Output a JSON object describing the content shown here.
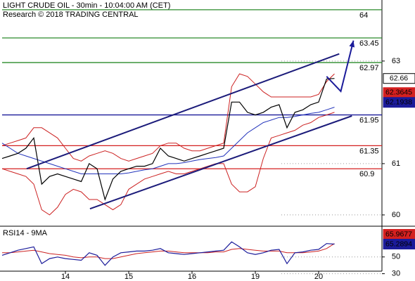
{
  "chart_data": [
    {
      "type": "line",
      "title": "LIGHT CRUDE OIL - 30min - 10:04:00 AM (CET)",
      "subtitle": "Research © 2018 TRADING CENTRAL",
      "ylim": [
        59.78,
        64.19
      ],
      "yticks": [
        60,
        61,
        63
      ],
      "series": [
        {
          "color": "#cc2222",
          "values": [
            61.35,
            61.4,
            61.45,
            61.5,
            61.7,
            61.7,
            61.6,
            61.5,
            61.3,
            61.1,
            61.05,
            61.15,
            61.2,
            61.25,
            61.2,
            61.1,
            61.05,
            61.1,
            61.15,
            61.2,
            61.35,
            61.4,
            61.4,
            61.3,
            61.25,
            61.25,
            61.3,
            61.35,
            61.4,
            62.5,
            62.75,
            62.7,
            62.55,
            62.4,
            62.3,
            62.3,
            62.3,
            62.3,
            62.3,
            62.3,
            62.35,
            62.6,
            62.75
          ]
        },
        {
          "color": "#cc2222",
          "values": [
            60.9,
            60.85,
            60.8,
            60.75,
            60.6,
            60.1,
            60.0,
            60.15,
            60.4,
            60.5,
            60.45,
            60.3,
            60.3,
            60.2,
            60.1,
            60.2,
            60.5,
            60.6,
            60.7,
            60.75,
            60.8,
            60.85,
            60.8,
            60.8,
            60.85,
            60.9,
            60.95,
            61.0,
            61.0,
            60.6,
            60.45,
            60.45,
            60.55,
            61.1,
            61.5,
            61.55,
            61.6,
            61.65,
            61.75,
            61.8,
            61.9,
            61.95,
            62.0
          ]
        },
        {
          "color": "#2233bb",
          "values": [
            61.4,
            61.3,
            61.2,
            61.15,
            61.1,
            61.05,
            61.0,
            60.95,
            60.9,
            60.85,
            60.8,
            60.8,
            60.8,
            60.8,
            60.8,
            60.8,
            60.82,
            60.85,
            60.88,
            60.9,
            60.95,
            61.0,
            61.0,
            61.02,
            61.05,
            61.08,
            61.1,
            61.12,
            61.15,
            61.3,
            61.45,
            61.6,
            61.7,
            61.8,
            61.85,
            61.9,
            61.9,
            61.92,
            61.95,
            61.98,
            62.0,
            62.05,
            62.1
          ]
        },
        {
          "color": "#000000",
          "values": [
            61.1,
            61.15,
            61.2,
            61.3,
            61.5,
            60.6,
            60.75,
            60.8,
            60.75,
            60.7,
            60.65,
            61.0,
            60.9,
            60.3,
            60.7,
            60.85,
            60.9,
            60.95,
            60.95,
            61.0,
            61.3,
            61.15,
            61.1,
            61.05,
            61.1,
            61.15,
            61.2,
            61.25,
            61.3,
            62.2,
            62.2,
            62.0,
            61.95,
            62.0,
            62.1,
            62.15,
            61.7,
            62.0,
            62.05,
            62.15,
            62.2,
            62.65,
            62.66
          ]
        }
      ],
      "levels": [
        {
          "value": 64,
          "color": "#2a8a2a"
        },
        {
          "value": 63.45,
          "color": "#2a8a2a"
        },
        {
          "value": 62.97,
          "color": "#2a8a2a"
        },
        {
          "value": 61.95,
          "color": "#1b1b9a"
        },
        {
          "value": 61.35,
          "color": "#d42020"
        },
        {
          "value": 60.9,
          "color": "#d42020"
        }
      ],
      "channel": [
        {
          "x": [
            3.1,
            42.6
          ],
          "y": [
            60.9,
            63.14
          ]
        },
        {
          "x": [
            11.1,
            44.2
          ],
          "y": [
            60.12,
            61.93
          ]
        }
      ],
      "arrow": {
        "x": [
          41,
          42.8,
          44.4
        ],
        "y": [
          62.7,
          62.41,
          63.4
        ],
        "color": "#1b1b9a"
      },
      "markers": [
        {
          "value": 62.66,
          "color": "#ffffff"
        },
        {
          "value": 62.3645,
          "color": "#d42020"
        },
        {
          "value": 62.1938,
          "color": "#1b1b9a"
        }
      ]
    },
    {
      "type": "line",
      "title": "RSI14 - 9MA",
      "categories": [
        null,
        null,
        null,
        null,
        null,
        null,
        null,
        null,
        "14",
        null,
        null,
        null,
        null,
        null,
        null,
        null,
        "15",
        null,
        null,
        null,
        null,
        null,
        null,
        null,
        "16",
        null,
        null,
        null,
        null,
        null,
        null,
        null,
        "19",
        null,
        null,
        null,
        null,
        null,
        null,
        null,
        "20",
        null,
        null
      ],
      "ylim": [
        28,
        85
      ],
      "yticks": [
        30,
        50
      ],
      "series": [
        {
          "color": "#cc2222",
          "values": [
            55,
            55,
            56,
            57,
            58,
            56,
            54,
            53,
            52,
            50,
            49,
            50,
            50,
            48,
            48,
            50,
            52,
            54,
            55,
            56,
            57,
            57,
            56,
            55,
            55,
            55,
            55,
            56,
            56,
            59,
            60,
            59,
            58,
            57,
            57,
            57,
            55,
            55,
            55,
            56,
            57,
            60,
            65.9677
          ]
        },
        {
          "color": "#1b1b9a",
          "values": [
            52,
            55,
            58,
            60,
            62,
            42,
            48,
            50,
            48,
            47,
            46,
            55,
            52,
            40,
            50,
            55,
            56,
            57,
            57,
            58,
            60,
            55,
            54,
            53,
            54,
            55,
            56,
            57,
            58,
            68,
            62,
            55,
            53,
            55,
            58,
            59,
            42,
            55,
            56,
            58,
            59,
            66,
            65.2894
          ]
        }
      ],
      "markers": [
        {
          "value": 65.9677,
          "color": "#d42020"
        },
        {
          "value": 65.2894,
          "color": "#1b1b9a"
        }
      ]
    }
  ]
}
